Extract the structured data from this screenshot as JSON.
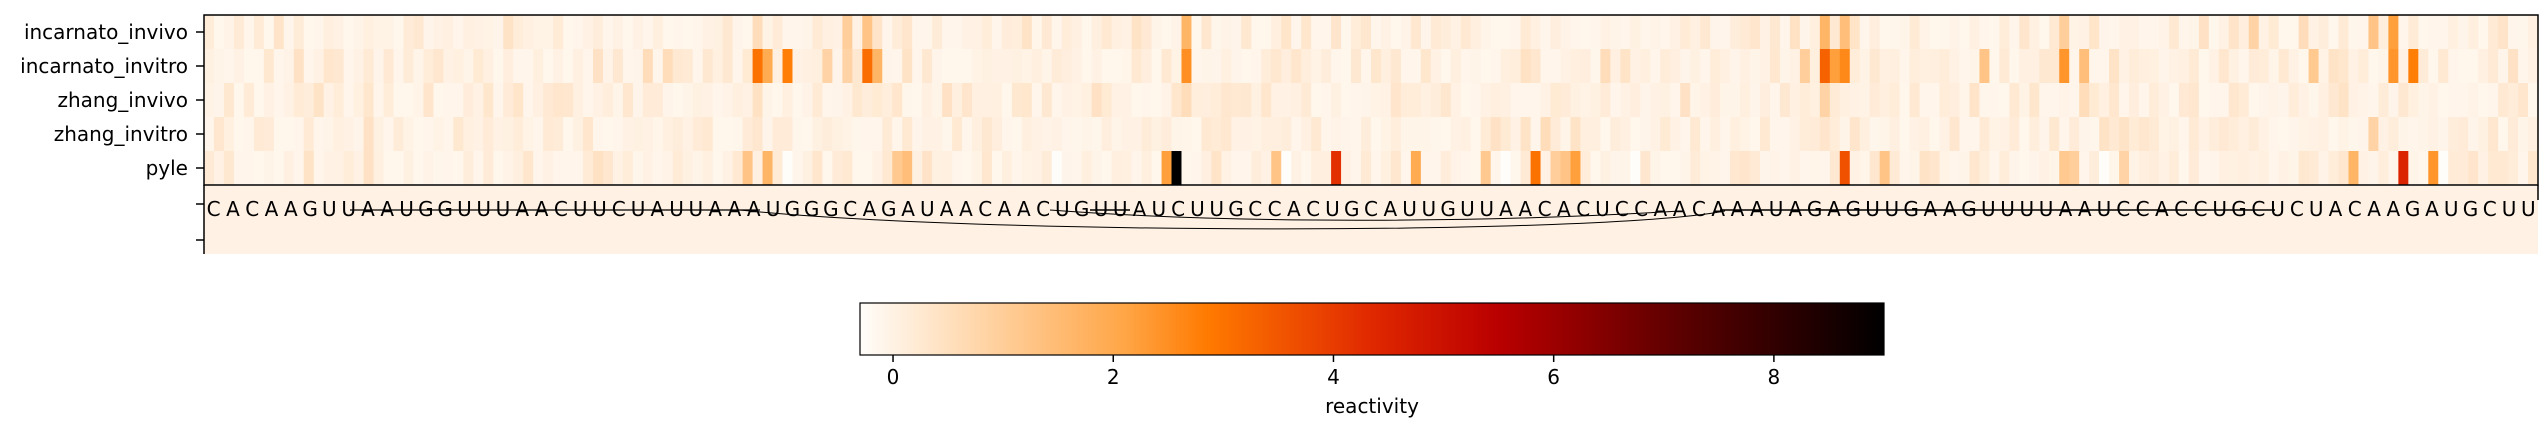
{
  "chart_data": {
    "type": "heatmap",
    "rows": [
      "incarnato_invivo",
      "incarnato_invitro",
      "zhang_invivo",
      "zhang_invitro",
      "pyle"
    ],
    "sequence": "CACAAGUUAAUGGUUUAACUUCUAUUAAAUGGGCAGAUAACAACUGUUAUCUUGCCACUGCAUUGUUAACACUCCAACAAAUAGAGUUGAAGUUUUAAUCCACCUGCUCUACAAGAUGCUU",
    "peaks": [
      {
        "row": 1,
        "pos": 44,
        "value": 1.0
      },
      {
        "row": 1,
        "pos": 46,
        "value": 1.0
      },
      {
        "row": 1,
        "pos": 48,
        "value": 0.6
      },
      {
        "row": 0,
        "pos": 55,
        "value": 1.0
      },
      {
        "row": 1,
        "pos": 55,
        "value": 3.0
      },
      {
        "row": 1,
        "pos": 56,
        "value": 2.0
      },
      {
        "row": 1,
        "pos": 58,
        "value": 2.8
      },
      {
        "row": 1,
        "pos": 62,
        "value": 1.2
      },
      {
        "row": 1,
        "pos": 64,
        "value": 1.2
      },
      {
        "row": 0,
        "pos": 64,
        "value": 1.3
      },
      {
        "row": 1,
        "pos": 66,
        "value": 3.1
      },
      {
        "row": 1,
        "pos": 67,
        "value": 1.8
      },
      {
        "row": 0,
        "pos": 66,
        "value": 1.5
      },
      {
        "row": 2,
        "pos": 55,
        "value": 0.9
      },
      {
        "row": 3,
        "pos": 55,
        "value": 0.8
      },
      {
        "row": 4,
        "pos": 54,
        "value": 1.5
      },
      {
        "row": 4,
        "pos": 56,
        "value": 1.8
      },
      {
        "row": 4,
        "pos": 69,
        "value": 1.4
      },
      {
        "row": 4,
        "pos": 70,
        "value": 1.6
      },
      {
        "row": 0,
        "pos": 98,
        "value": 1.8
      },
      {
        "row": 1,
        "pos": 98,
        "value": 2.5
      },
      {
        "row": 2,
        "pos": 98,
        "value": 1.0
      },
      {
        "row": 4,
        "pos": 96,
        "value": 2.2
      },
      {
        "row": 4,
        "pos": 97,
        "value": 9.0
      },
      {
        "row": 4,
        "pos": 107,
        "value": 1.5
      },
      {
        "row": 4,
        "pos": 113,
        "value": 4.2
      },
      {
        "row": 4,
        "pos": 121,
        "value": 2.0
      },
      {
        "row": 4,
        "pos": 128,
        "value": 1.4
      },
      {
        "row": 4,
        "pos": 133,
        "value": 3.0
      },
      {
        "row": 4,
        "pos": 135,
        "value": 1.3
      },
      {
        "row": 4,
        "pos": 136,
        "value": 1.5
      },
      {
        "row": 4,
        "pos": 137,
        "value": 2.2
      },
      {
        "row": 3,
        "pos": 134,
        "value": 1.0
      },
      {
        "row": 1,
        "pos": 140,
        "value": 1.0
      },
      {
        "row": 0,
        "pos": 150,
        "value": 0.7
      },
      {
        "row": 1,
        "pos": 160,
        "value": 1.3
      },
      {
        "row": 0,
        "pos": 162,
        "value": 1.8
      },
      {
        "row": 1,
        "pos": 162,
        "value": 3.3
      },
      {
        "row": 1,
        "pos": 163,
        "value": 2.2
      },
      {
        "row": 1,
        "pos": 164,
        "value": 2.6
      },
      {
        "row": 0,
        "pos": 164,
        "value": 1.6
      },
      {
        "row": 2,
        "pos": 162,
        "value": 1.2
      },
      {
        "row": 4,
        "pos": 164,
        "value": 3.6
      },
      {
        "row": 4,
        "pos": 168,
        "value": 1.5
      },
      {
        "row": 1,
        "pos": 178,
        "value": 1.5
      },
      {
        "row": 0,
        "pos": 186,
        "value": 1.3
      },
      {
        "row": 1,
        "pos": 186,
        "value": 2.4
      },
      {
        "row": 1,
        "pos": 188,
        "value": 1.6
      },
      {
        "row": 2,
        "pos": 188,
        "value": 1.0
      },
      {
        "row": 4,
        "pos": 186,
        "value": 1.4
      },
      {
        "row": 4,
        "pos": 187,
        "value": 1.3
      },
      {
        "row": 4,
        "pos": 192,
        "value": 1.2
      },
      {
        "row": 0,
        "pos": 205,
        "value": 1.2
      },
      {
        "row": 1,
        "pos": 211,
        "value": 1.4
      },
      {
        "row": 0,
        "pos": 217,
        "value": 1.5
      },
      {
        "row": 0,
        "pos": 219,
        "value": 2.2
      },
      {
        "row": 1,
        "pos": 219,
        "value": 2.4
      },
      {
        "row": 1,
        "pos": 221,
        "value": 2.8
      },
      {
        "row": 3,
        "pos": 217,
        "value": 1.2
      },
      {
        "row": 4,
        "pos": 215,
        "value": 1.8
      },
      {
        "row": 4,
        "pos": 220,
        "value": 4.5
      },
      {
        "row": 4,
        "pos": 223,
        "value": 2.4
      },
      {
        "row": 0,
        "pos": 210,
        "value": 1.0
      }
    ],
    "colorbar": {
      "label": "reactivity",
      "ticks": [
        "0",
        "2",
        "4",
        "6",
        "8"
      ],
      "tick_values": [
        0,
        2,
        4,
        6,
        8
      ],
      "range": [
        -0.3,
        9.0
      ],
      "colormap": "gist_heat_r"
    }
  }
}
